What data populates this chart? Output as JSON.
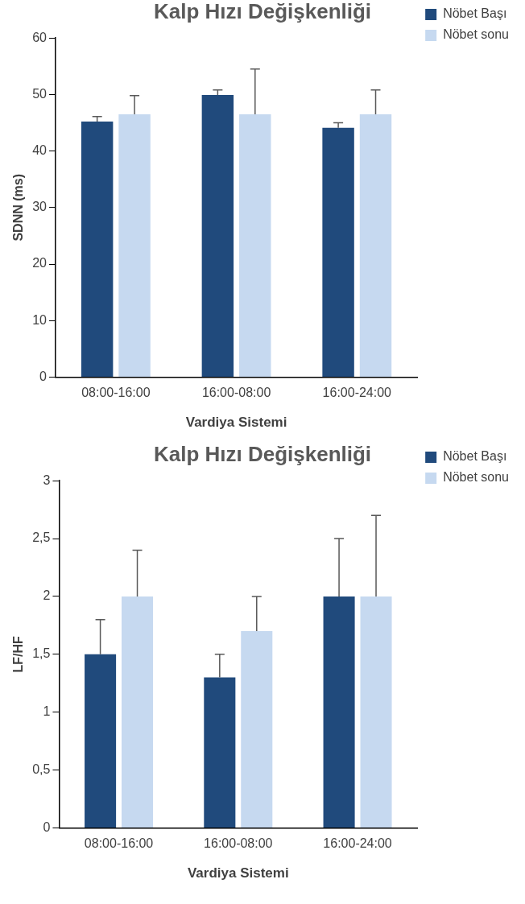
{
  "chart_data": [
    {
      "type": "bar",
      "title": "Kalp Hızı Değişkenliği",
      "xlabel": "Vardiya Sistemi",
      "ylabel": "SDNN (ms)",
      "categories": [
        "08:00-16:00",
        "16:00-08:00",
        "16:00-24:00"
      ],
      "series": [
        {
          "name": "Nöbet Başı",
          "color": "#204a7c",
          "values": [
            45.2,
            49.9,
            44.1
          ],
          "errors": [
            [
              45.2,
              46.1
            ],
            [
              49.9,
              50.8
            ],
            [
              44.1,
              45.0
            ]
          ]
        },
        {
          "name": "Nöbet sonu",
          "color": "#c6d9f0",
          "values": [
            46.5,
            46.5,
            46.5
          ],
          "errors": [
            [
              46.5,
              49.8
            ],
            [
              46.5,
              54.5
            ],
            [
              46.5,
              50.8
            ]
          ]
        }
      ],
      "ylim": [
        0,
        60
      ],
      "yticks": [
        0,
        10,
        20,
        30,
        40,
        50,
        60
      ],
      "grid": false,
      "legend": "top right"
    },
    {
      "type": "bar",
      "title": "Kalp Hızı Değişkenliği",
      "xlabel": "Vardiya Sistemi",
      "ylabel": "LF/HF",
      "categories": [
        "08:00-16:00",
        "16:00-08:00",
        "16:00-24:00"
      ],
      "series": [
        {
          "name": "Nöbet Başı",
          "color": "#204a7c",
          "values": [
            1.5,
            1.3,
            2.0
          ],
          "errors": [
            [
              1.5,
              1.8
            ],
            [
              1.3,
              1.5
            ],
            [
              2.0,
              2.5
            ]
          ]
        },
        {
          "name": "Nöbet sonu",
          "color": "#c6d9f0",
          "values": [
            2.0,
            1.7,
            2.0
          ],
          "errors": [
            [
              2.0,
              2.4
            ],
            [
              1.7,
              2.0
            ],
            [
              2.0,
              2.7
            ]
          ]
        }
      ],
      "ylim": [
        0,
        3
      ],
      "yticks": [
        0,
        {
          "value": 0.5,
          "label": "0,5"
        },
        1,
        {
          "value": 1.5,
          "label": "1,5"
        },
        2,
        {
          "value": 2.5,
          "label": "2,5"
        },
        3
      ],
      "grid": false,
      "legend": "top right"
    }
  ]
}
